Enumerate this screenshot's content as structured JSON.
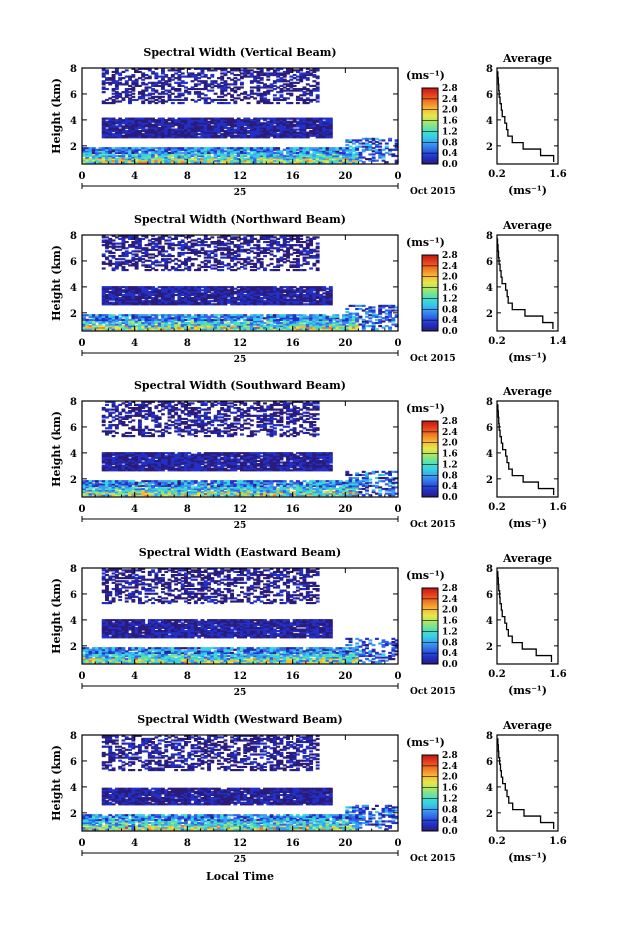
{
  "figure": {
    "x_axis_label": "Local Time",
    "date_label": "Oct 2015",
    "day_label": "25",
    "x_ticks": [
      "0",
      "4",
      "8",
      "12",
      "16",
      "20",
      "0"
    ],
    "y_ticks": [
      "2",
      "4",
      "6",
      "8"
    ],
    "y_label": "Height (km)",
    "colorbar_unit": "(ms⁻¹)",
    "colorbar_ticks": [
      "0.0",
      "0.4",
      "0.8",
      "1.2",
      "1.6",
      "2.0",
      "2.4",
      "2.8"
    ],
    "avg_title": "Average",
    "avg_xlabel": "(ms⁻¹)",
    "avg_y_ticks": [
      "2",
      "4",
      "6",
      "8"
    ],
    "colorscale": [
      "#2b1b7a",
      "#2030c8",
      "#2f63e8",
      "#3a9ef0",
      "#34d2e6",
      "#57e0b2",
      "#a6e66c",
      "#e6e84a",
      "#f7b834",
      "#f07a26",
      "#e5401c",
      "#c41416"
    ]
  },
  "chart_data": [
    {
      "type": "heatmap",
      "title": "Spectral Width (Vertical Beam)",
      "xlabel": "",
      "ylabel": "Height (km)",
      "xlim": [
        0,
        24
      ],
      "ylim": [
        0.6,
        8
      ],
      "clim": [
        0.0,
        2.8
      ],
      "avg_profile": {
        "x_ticks": [
          "0.2",
          "1.6"
        ],
        "xlim": [
          0.2,
          1.6
        ],
        "heights": [
          1.0,
          1.5,
          2.0,
          2.5,
          3.0,
          3.5,
          4.0,
          4.5,
          5.0,
          5.5,
          6.0,
          6.5,
          7.0,
          7.5
        ],
        "values": [
          1.5,
          1.2,
          0.8,
          0.55,
          0.45,
          0.42,
          0.38,
          0.32,
          0.3,
          0.27,
          0.25,
          0.24,
          0.23,
          0.22
        ]
      }
    },
    {
      "type": "heatmap",
      "title": "Spectral Width (Northward Beam)",
      "xlabel": "",
      "ylabel": "Height (km)",
      "xlim": [
        0,
        24
      ],
      "ylim": [
        0.6,
        8
      ],
      "clim": [
        0.0,
        2.8
      ],
      "avg_profile": {
        "x_ticks": [
          "0.2",
          "1.4"
        ],
        "xlim": [
          0.2,
          1.4
        ],
        "heights": [
          1.0,
          1.5,
          2.0,
          2.5,
          3.0,
          3.5,
          4.0,
          4.5,
          5.0,
          5.5,
          6.0,
          6.5,
          7.0,
          7.5
        ],
        "values": [
          1.3,
          1.1,
          0.75,
          0.5,
          0.42,
          0.4,
          0.37,
          0.3,
          0.28,
          0.26,
          0.24,
          0.23,
          0.22,
          0.21
        ]
      }
    },
    {
      "type": "heatmap",
      "title": "Spectral Width (Southward Beam)",
      "xlabel": "",
      "ylabel": "Height (km)",
      "xlim": [
        0,
        24
      ],
      "ylim": [
        0.6,
        8
      ],
      "clim": [
        0.0,
        2.8
      ],
      "avg_profile": {
        "x_ticks": [
          "0.2",
          "1.6"
        ],
        "xlim": [
          0.2,
          1.6
        ],
        "heights": [
          1.0,
          1.5,
          2.0,
          2.5,
          3.0,
          3.5,
          4.0,
          4.5,
          5.0,
          5.5,
          6.0,
          6.5,
          7.0,
          7.5
        ],
        "values": [
          1.5,
          1.15,
          0.8,
          0.55,
          0.47,
          0.43,
          0.4,
          0.33,
          0.3,
          0.27,
          0.25,
          0.24,
          0.23,
          0.22
        ]
      }
    },
    {
      "type": "heatmap",
      "title": "Spectral Width (Eastward Beam)",
      "xlabel": "",
      "ylabel": "Height (km)",
      "xlim": [
        0,
        24
      ],
      "ylim": [
        0.6,
        8
      ],
      "clim": [
        0.0,
        2.8
      ],
      "avg_profile": {
        "x_ticks": [
          "0.2",
          "1.6"
        ],
        "xlim": [
          0.2,
          1.6
        ],
        "heights": [
          1.0,
          1.5,
          2.0,
          2.5,
          3.0,
          3.5,
          4.0,
          4.5,
          5.0,
          5.5,
          6.0,
          6.5,
          7.0,
          7.5
        ],
        "values": [
          1.45,
          1.1,
          0.78,
          0.55,
          0.46,
          0.42,
          0.38,
          0.32,
          0.3,
          0.27,
          0.26,
          0.24,
          0.23,
          0.22
        ]
      }
    },
    {
      "type": "heatmap",
      "title": "Spectral Width (Westward Beam)",
      "xlabel": "Local Time",
      "ylabel": "Height (km)",
      "xlim": [
        0,
        24
      ],
      "ylim": [
        0.6,
        8
      ],
      "clim": [
        0.0,
        2.8
      ],
      "avg_profile": {
        "x_ticks": [
          "0.2",
          "1.6"
        ],
        "xlim": [
          0.2,
          1.6
        ],
        "heights": [
          1.0,
          1.5,
          2.0,
          2.5,
          3.0,
          3.5,
          4.0,
          4.5,
          5.0,
          5.5,
          6.0,
          6.5,
          7.0,
          7.5
        ],
        "values": [
          1.5,
          1.2,
          0.82,
          0.56,
          0.47,
          0.43,
          0.39,
          0.33,
          0.3,
          0.28,
          0.26,
          0.24,
          0.23,
          0.22
        ]
      }
    }
  ]
}
